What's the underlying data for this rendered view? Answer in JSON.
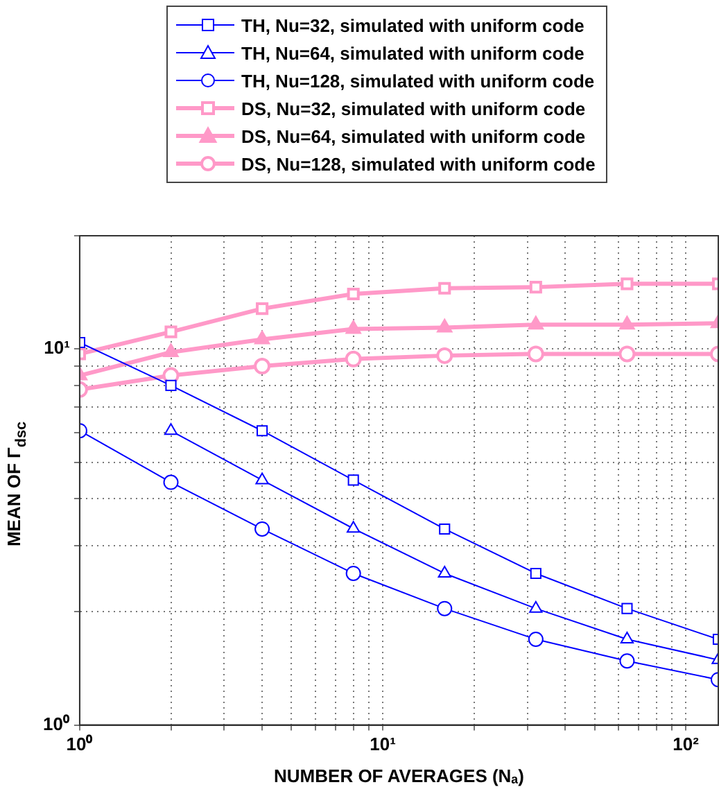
{
  "chart_data": {
    "type": "line",
    "xlabel": "NUMBER OF AVERAGES (Nₐ)",
    "ylabel": "MEAN OF Γ$_{dsc}$",
    "log": "xy",
    "grid": true,
    "legend": "top",
    "line_style": "solid",
    "x": [
      1,
      2,
      4,
      8,
      16,
      32,
      64,
      128
    ],
    "xlim": [
      1,
      128
    ],
    "ylim": [
      1,
      20
    ],
    "xticks": [
      {
        "value": 1,
        "label": "10⁰"
      },
      {
        "value": 2,
        "label": null
      },
      {
        "value": 3,
        "label": null
      },
      {
        "value": 4,
        "label": null
      },
      {
        "value": 5,
        "label": null
      },
      {
        "value": 6,
        "label": null
      },
      {
        "value": 7,
        "label": null
      },
      {
        "value": 8,
        "label": null
      },
      {
        "value": 9,
        "label": null
      },
      {
        "value": 10,
        "label": "10¹"
      },
      {
        "value": 20,
        "label": null
      },
      {
        "value": 30,
        "label": null
      },
      {
        "value": 40,
        "label": null
      },
      {
        "value": 50,
        "label": null
      },
      {
        "value": 60,
        "label": null
      },
      {
        "value": 70,
        "label": null
      },
      {
        "value": 80,
        "label": null
      },
      {
        "value": 90,
        "label": null
      },
      {
        "value": 100,
        "label": "10²"
      }
    ],
    "yticks": [
      {
        "value": 1,
        "label": "10⁰"
      },
      {
        "value": 2,
        "label": null
      },
      {
        "value": 3,
        "label": null
      },
      {
        "value": 4,
        "label": null
      },
      {
        "value": 5,
        "label": null
      },
      {
        "value": 6,
        "label": null
      },
      {
        "value": 7,
        "label": null
      },
      {
        "value": 8,
        "label": null
      },
      {
        "value": 9,
        "label": null
      },
      {
        "value": 10,
        "label": "10¹"
      },
      {
        "value": 20,
        "label": null
      }
    ],
    "series": [
      {
        "name": "TH, Nu=32, simulated with uniform code",
        "color": "#0000ff",
        "marker": "square",
        "values": [
          10.4,
          8.0,
          6.06,
          4.48,
          3.32,
          2.53,
          2.04,
          1.69
        ]
      },
      {
        "name": "TH, Nu=64, simulated with uniform code",
        "color": "#0000ff",
        "marker": "triangle",
        "values": [
          null,
          6.06,
          4.48,
          3.33,
          2.53,
          2.04,
          1.69,
          1.49
        ]
      },
      {
        "name": "TH, Nu=128, simulated with uniform code",
        "color": "#0000ff",
        "marker": "circle",
        "values": [
          6.06,
          4.42,
          3.32,
          2.53,
          2.04,
          1.69,
          1.48,
          1.32
        ]
      },
      {
        "name": "DS, Nu=32, simulated with uniform code",
        "color": "#ff99c8",
        "marker": "square",
        "values": [
          9.7,
          11.1,
          12.8,
          14.0,
          14.5,
          14.6,
          14.9,
          14.9
        ]
      },
      {
        "name": "DS, Nu=64, simulated with uniform code",
        "color": "#ff99c8",
        "marker": "triangle",
        "values": [
          8.5,
          9.8,
          10.6,
          11.3,
          11.4,
          11.6,
          11.6,
          11.7
        ]
      },
      {
        "name": "DS, Nu=128, simulated with uniform code",
        "color": "#ff99c8",
        "marker": "circle",
        "values": [
          7.8,
          8.5,
          9.0,
          9.4,
          9.6,
          9.7,
          9.7,
          9.7
        ]
      }
    ]
  }
}
